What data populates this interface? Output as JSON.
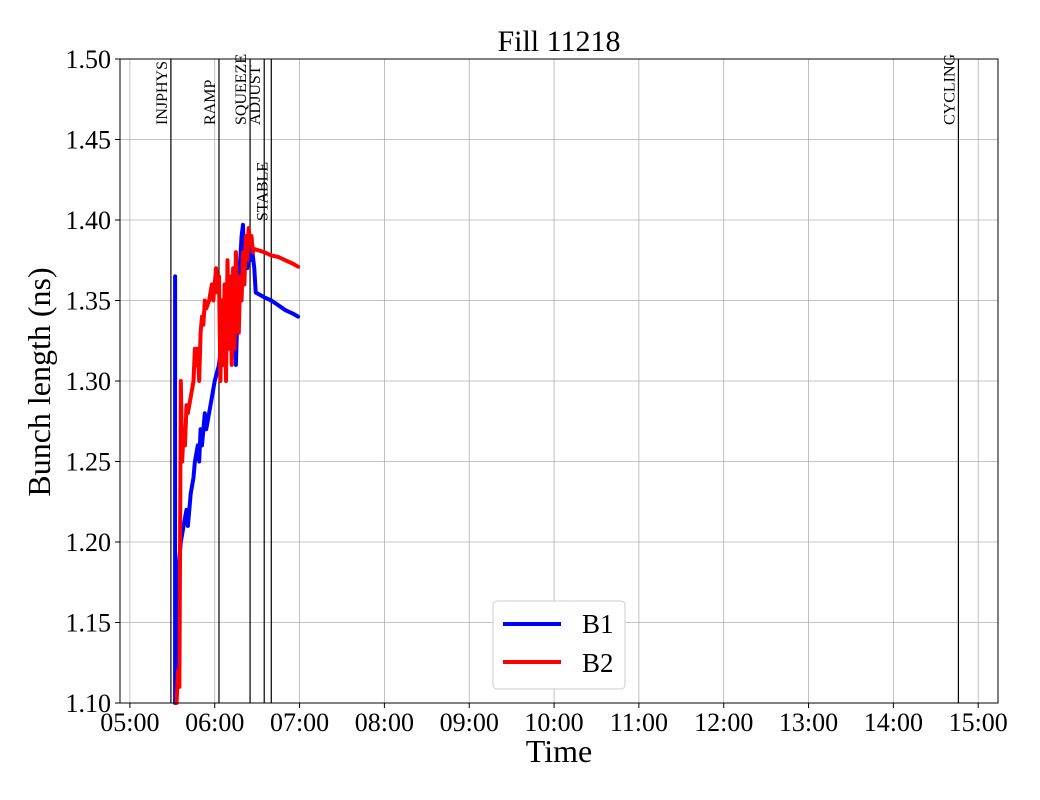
{
  "chart_data": {
    "type": "line",
    "title": "Fill 11218",
    "xlabel": "Time",
    "ylabel": "Bunch length (ns)",
    "xlim": [
      "04:53",
      "15:14"
    ],
    "ylim": [
      1.1,
      1.5
    ],
    "x_ticks": [
      "05:00",
      "06:00",
      "07:00",
      "08:00",
      "09:00",
      "10:00",
      "11:00",
      "12:00",
      "13:00",
      "14:00",
      "15:00"
    ],
    "y_ticks": [
      "1.10",
      "1.15",
      "1.20",
      "1.25",
      "1.30",
      "1.35",
      "1.40",
      "1.45",
      "1.50"
    ],
    "grid": true,
    "legend_position": "lower-center",
    "modes": [
      {
        "label": "INJPHYS",
        "time": "05:29",
        "row": "top"
      },
      {
        "label": "RAMP",
        "time": "06:03",
        "row": "top"
      },
      {
        "label": "SQUEEZE",
        "time": "06:25",
        "row": "top"
      },
      {
        "label": "ADJUST",
        "time": "06:35",
        "row": "top"
      },
      {
        "label": "STABLE",
        "time": "06:40",
        "row": "second"
      },
      {
        "label": "CYCLING",
        "time": "14:46",
        "row": "top"
      }
    ],
    "series": [
      {
        "name": "B1",
        "color": "#0000ff",
        "points": [
          [
            "05:32",
            1.365
          ],
          [
            "05:32",
            1.1
          ],
          [
            "05:33",
            1.14
          ],
          [
            "05:34",
            1.18
          ],
          [
            "05:36",
            1.2
          ],
          [
            "05:38",
            1.21
          ],
          [
            "05:40",
            1.22
          ],
          [
            "05:41",
            1.21
          ],
          [
            "05:43",
            1.23
          ],
          [
            "05:45",
            1.24
          ],
          [
            "05:46",
            1.25
          ],
          [
            "05:48",
            1.26
          ],
          [
            "05:49",
            1.25
          ],
          [
            "05:50",
            1.27
          ],
          [
            "05:51",
            1.26
          ],
          [
            "05:53",
            1.28
          ],
          [
            "05:54",
            1.27
          ],
          [
            "05:56",
            1.28
          ],
          [
            "05:58",
            1.29
          ],
          [
            "06:00",
            1.3
          ],
          [
            "06:03",
            1.31
          ],
          [
            "06:05",
            1.325
          ],
          [
            "06:07",
            1.33
          ],
          [
            "06:09",
            1.335
          ],
          [
            "06:11",
            1.34
          ],
          [
            "06:13",
            1.33
          ],
          [
            "06:14",
            1.345
          ],
          [
            "06:15",
            1.31
          ],
          [
            "06:16",
            1.34
          ],
          [
            "06:17",
            1.36
          ],
          [
            "06:18",
            1.375
          ],
          [
            "06:19",
            1.39
          ],
          [
            "06:20",
            1.397
          ],
          [
            "06:21",
            1.37
          ],
          [
            "06:22",
            1.385
          ],
          [
            "06:23",
            1.37
          ],
          [
            "06:24",
            1.38
          ],
          [
            "06:25",
            1.375
          ],
          [
            "06:26",
            1.385
          ],
          [
            "06:28",
            1.37
          ],
          [
            "06:29",
            1.355
          ],
          [
            "06:35",
            1.352
          ],
          [
            "06:40",
            1.35
          ],
          [
            "06:45",
            1.347
          ],
          [
            "06:50",
            1.344
          ],
          [
            "06:55",
            1.342
          ],
          [
            "06:59",
            1.34
          ]
        ]
      },
      {
        "name": "B2",
        "color": "#ff0000",
        "points": [
          [
            "05:33",
            1.1
          ],
          [
            "05:34",
            1.12
          ],
          [
            "05:35",
            1.11
          ],
          [
            "05:36",
            1.3
          ],
          [
            "05:37",
            1.25
          ],
          [
            "05:38",
            1.27
          ],
          [
            "05:39",
            1.26
          ],
          [
            "05:40",
            1.285
          ],
          [
            "05:41",
            1.28
          ],
          [
            "05:43",
            1.29
          ],
          [
            "05:45",
            1.3
          ],
          [
            "05:46",
            1.32
          ],
          [
            "05:47",
            1.31
          ],
          [
            "05:48",
            1.32
          ],
          [
            "05:49",
            1.3
          ],
          [
            "05:50",
            1.33
          ],
          [
            "05:51",
            1.34
          ],
          [
            "05:52",
            1.335
          ],
          [
            "05:53",
            1.35
          ],
          [
            "05:54",
            1.345
          ],
          [
            "05:56",
            1.35
          ],
          [
            "05:58",
            1.36
          ],
          [
            "05:59",
            1.35
          ],
          [
            "06:01",
            1.37
          ],
          [
            "06:02",
            1.355
          ],
          [
            "06:03",
            1.365
          ],
          [
            "06:04",
            1.3
          ],
          [
            "06:05",
            1.35
          ],
          [
            "06:06",
            1.31
          ],
          [
            "06:07",
            1.36
          ],
          [
            "06:08",
            1.3
          ],
          [
            "06:09",
            1.375
          ],
          [
            "06:10",
            1.32
          ],
          [
            "06:11",
            1.365
          ],
          [
            "06:12",
            1.31
          ],
          [
            "06:13",
            1.37
          ],
          [
            "06:14",
            1.32
          ],
          [
            "06:15",
            1.38
          ],
          [
            "06:16",
            1.34
          ],
          [
            "06:17",
            1.33
          ],
          [
            "06:18",
            1.365
          ],
          [
            "06:19",
            1.35
          ],
          [
            "06:20",
            1.38
          ],
          [
            "06:21",
            1.36
          ],
          [
            "06:22",
            1.39
          ],
          [
            "06:23",
            1.375
          ],
          [
            "06:24",
            1.395
          ],
          [
            "06:25",
            1.385
          ],
          [
            "06:26",
            1.39
          ],
          [
            "06:27",
            1.38
          ],
          [
            "06:28",
            1.382
          ],
          [
            "06:35",
            1.38
          ],
          [
            "06:40",
            1.378
          ],
          [
            "06:45",
            1.377
          ],
          [
            "06:50",
            1.375
          ],
          [
            "06:55",
            1.373
          ],
          [
            "06:59",
            1.371
          ]
        ]
      }
    ]
  }
}
